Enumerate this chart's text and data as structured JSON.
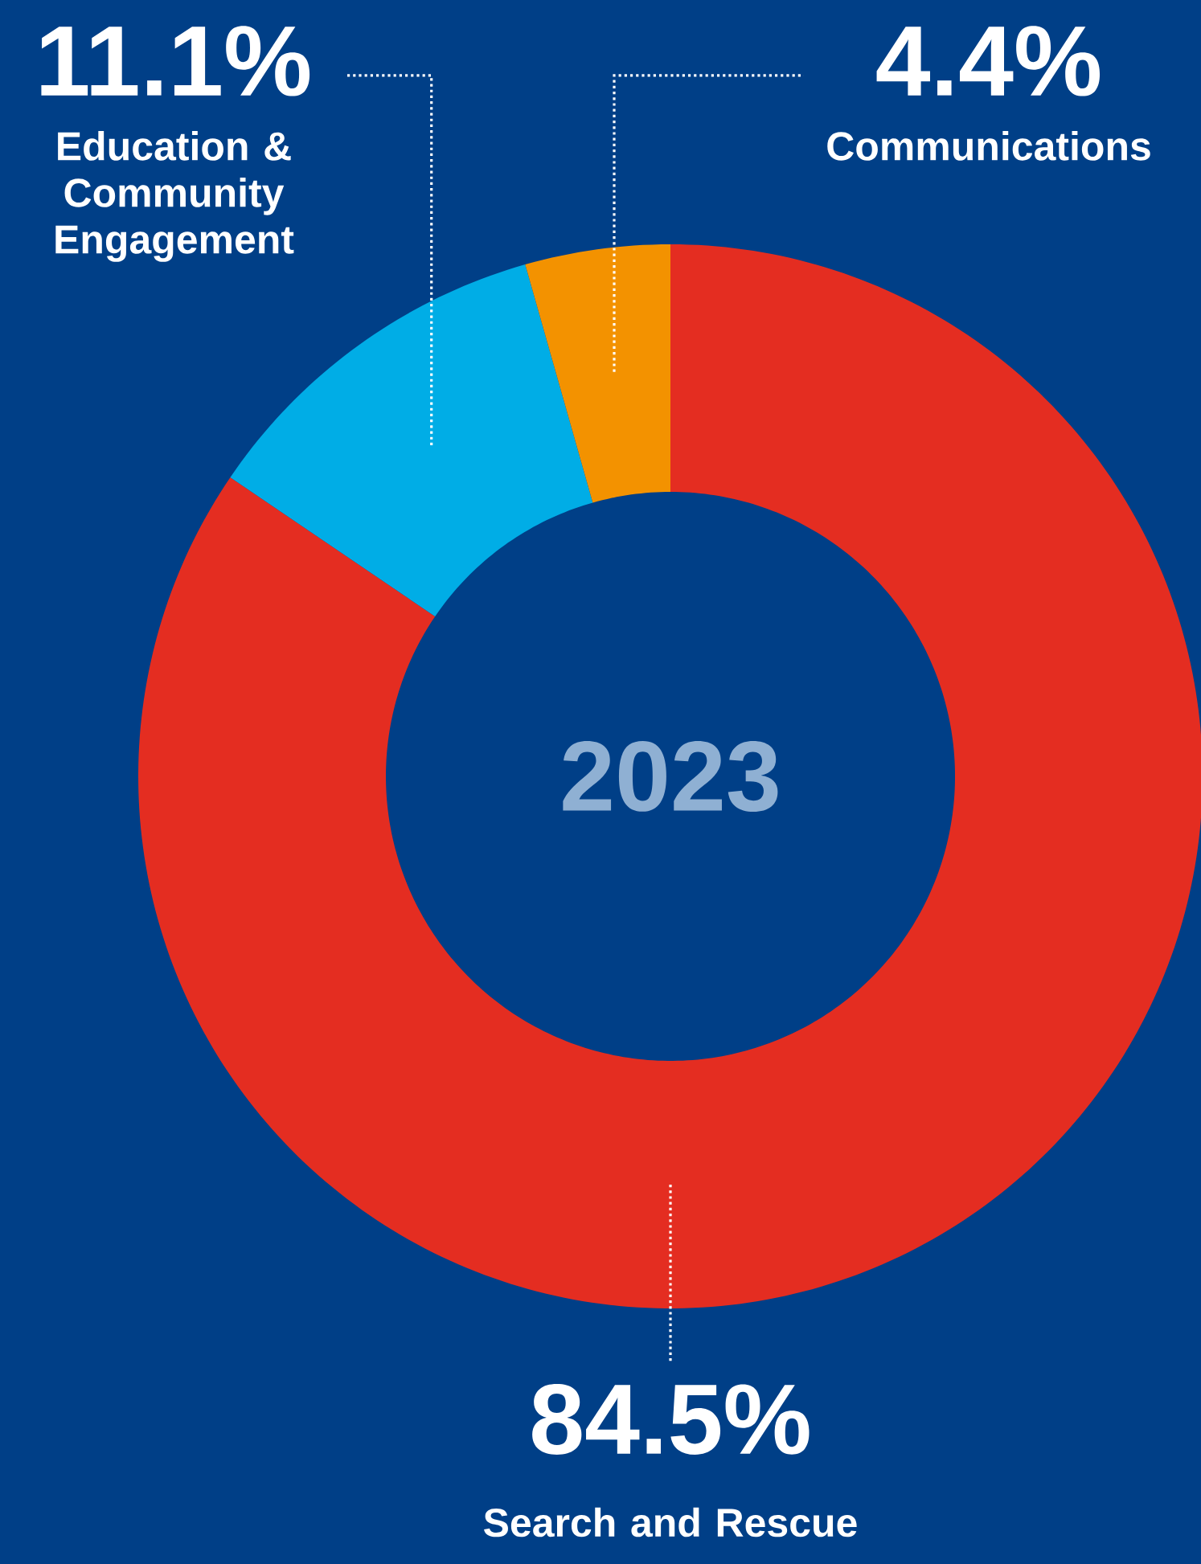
{
  "chart_data": {
    "type": "donut",
    "title": "2023",
    "categories": [
      "Search and Rescue",
      "Education & Community Engagement",
      "Communications"
    ],
    "values": [
      84.5,
      11.1,
      4.4
    ],
    "colors": [
      "#e42d21",
      "#00ade6",
      "#f39200"
    ],
    "value_labels": [
      "84.5%",
      "11.1%",
      "4.4%"
    ]
  }
}
